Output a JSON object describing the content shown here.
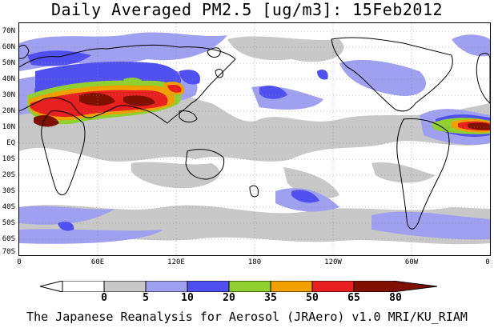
{
  "title": "Daily Averaged PM2.5 [ug/m3]: 15Feb2012",
  "footer": "The Japanese Reanalysis for Aerosol (JRAero) v1.0 MRI/KU_RIAM",
  "map": {
    "lat_labels": [
      "70N",
      "60N",
      "50N",
      "40N",
      "30N",
      "20N",
      "10N",
      "EQ",
      "10S",
      "20S",
      "30S",
      "40S",
      "50S",
      "60S",
      "70S"
    ],
    "lon_labels": [
      "0",
      "60E",
      "120E",
      "180",
      "120W",
      "60W",
      "0"
    ]
  },
  "colorbar": {
    "levels": [
      "0",
      "5",
      "10",
      "20",
      "35",
      "50",
      "65",
      "80"
    ],
    "colors": [
      "#ffffff",
      "#c8c8c8",
      "#a0a0f0",
      "#5050f0",
      "#90d030",
      "#f0a000",
      "#e82020",
      "#801000"
    ]
  }
}
